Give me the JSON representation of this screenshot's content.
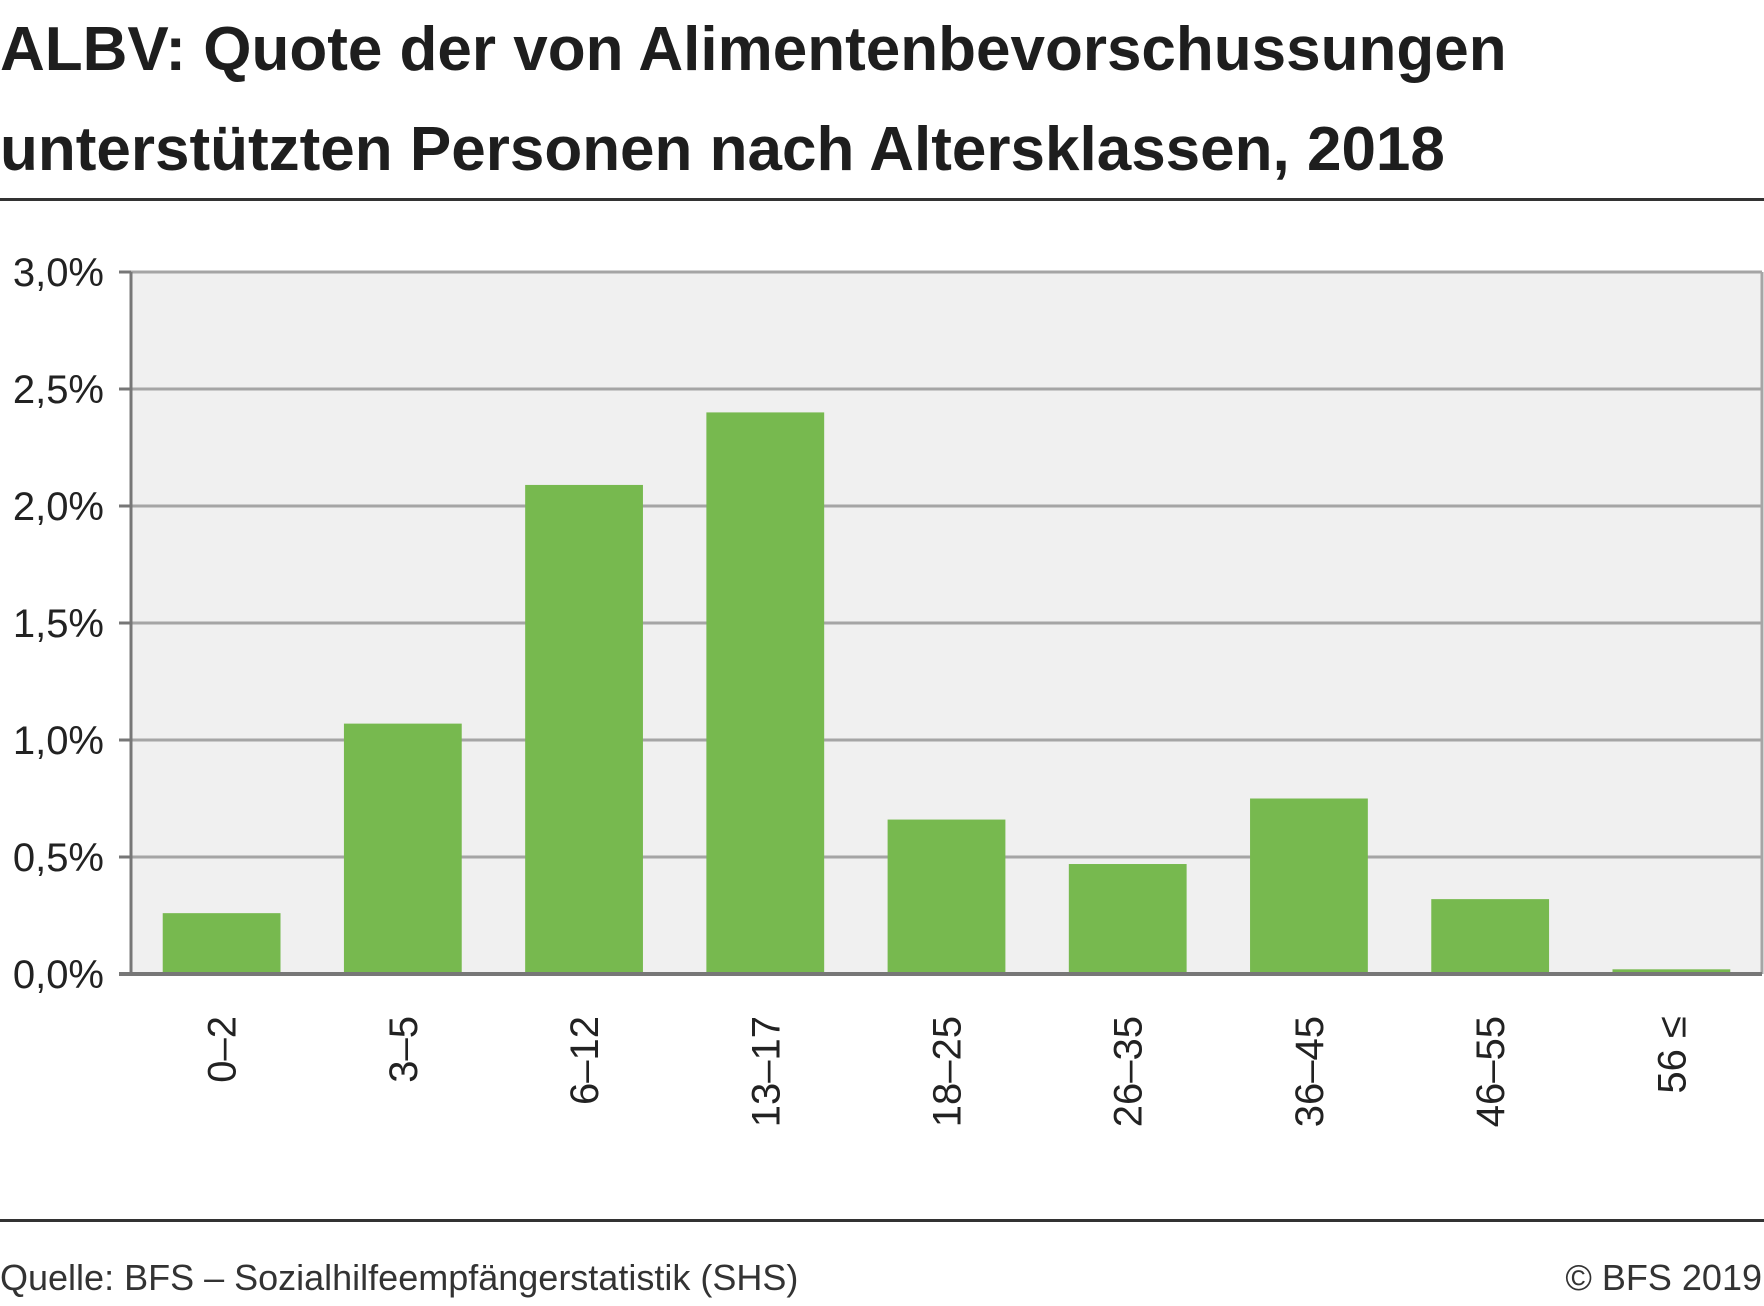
{
  "title_line1": "ALBV: Quote der von Alimentenbevorschussungen",
  "title_line2": "unterstützten Personen nach Altersklassen, 2018",
  "source": "Quelle: BFS – Sozialhilfeempfängerstatistik (SHS)",
  "copyright": "© BFS 2019",
  "colors": {
    "bar": "#77b94f",
    "plot_background": "#f0f0f0",
    "grid": "#a5a5a5",
    "axis": "#777777",
    "text": "#222222"
  },
  "chart_data": {
    "type": "bar",
    "categories": [
      "0–2",
      "3–5",
      "6–12",
      "13–17",
      "18–25",
      "26–35",
      "36–45",
      "46–55",
      "56 ≤"
    ],
    "values": [
      0.26,
      1.07,
      2.09,
      2.4,
      0.66,
      0.47,
      0.75,
      0.32,
      0.02
    ],
    "ylim": [
      0,
      3.0
    ],
    "yticks": [
      0,
      0.5,
      1.0,
      1.5,
      2.0,
      2.5,
      3.0
    ],
    "ytick_labels": [
      "0,0%",
      "0,5%",
      "1,0%",
      "1,5%",
      "2,0%",
      "2,5%",
      "3,0%"
    ],
    "xlabel": "",
    "ylabel": "",
    "grid": true,
    "legend": false
  }
}
